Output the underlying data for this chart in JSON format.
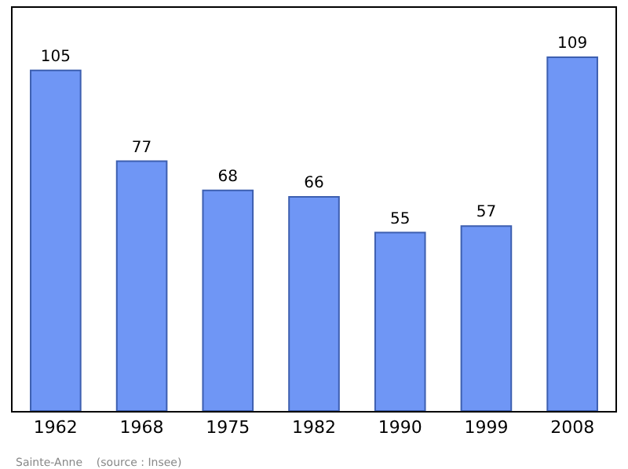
{
  "chart_data": {
    "type": "bar",
    "categories": [
      "1962",
      "1968",
      "1975",
      "1982",
      "1990",
      "1999",
      "2008"
    ],
    "values": [
      105,
      77,
      68,
      66,
      55,
      57,
      109
    ],
    "color": "#6f96f5",
    "data_labels": true,
    "legend": false,
    "annotations": [
      "Sainte-Anne    (source : Insee)"
    ]
  }
}
